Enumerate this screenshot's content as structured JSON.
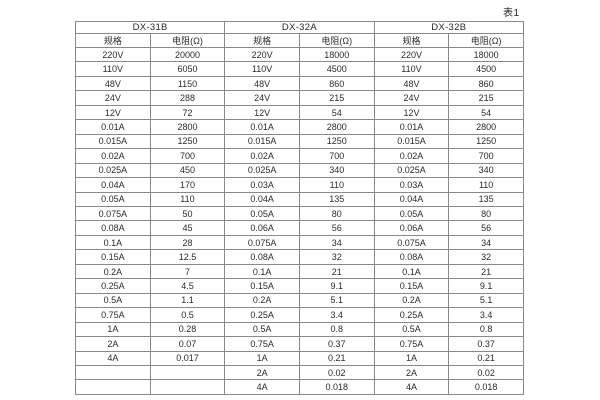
{
  "page": {
    "caption": "表1"
  },
  "colors": {
    "background": "#ffffff",
    "border": "#898989",
    "text": "#2b2b2b"
  },
  "table": {
    "groups": [
      {
        "name": "DX-31B",
        "spec_header": "规格",
        "resistance_header": "电阻(Ω)"
      },
      {
        "name": "DX-32A",
        "spec_header": "规格",
        "resistance_header": "电阻(Ω)"
      },
      {
        "name": "DX-32B",
        "spec_header": "规格",
        "resistance_header": "电阻(Ω)"
      }
    ],
    "rows": [
      [
        "220V",
        "20000",
        "220V",
        "18000",
        "220V",
        "18000"
      ],
      [
        "110V",
        "6050",
        "110V",
        "4500",
        "110V",
        "4500"
      ],
      [
        "48V",
        "1150",
        "48V",
        "860",
        "48V",
        "860"
      ],
      [
        "24V",
        "288",
        "24V",
        "215",
        "24V",
        "215"
      ],
      [
        "12V",
        "72",
        "12V",
        "54",
        "12V",
        "54"
      ],
      [
        "0.01A",
        "2800",
        "0.01A",
        "2800",
        "0.01A",
        "2800"
      ],
      [
        "0.015A",
        "1250",
        "0.015A",
        "1250",
        "0.015A",
        "1250"
      ],
      [
        "0.02A",
        "700",
        "0.02A",
        "700",
        "0.02A",
        "700"
      ],
      [
        "0.025A",
        "450",
        "0.025A",
        "340",
        "0.025A",
        "340"
      ],
      [
        "0.04A",
        "170",
        "0.03A",
        "110",
        "0.03A",
        "110"
      ],
      [
        "0.05A",
        "110",
        "0.04A",
        "135",
        "0.04A",
        "135"
      ],
      [
        "0.075A",
        "50",
        "0.05A",
        "80",
        "0.05A",
        "80"
      ],
      [
        "0.08A",
        "45",
        "0.06A",
        "56",
        "0.06A",
        "56"
      ],
      [
        "0.1A",
        "28",
        "0.075A",
        "34",
        "0.075A",
        "34"
      ],
      [
        "0.15A",
        "12.5",
        "0.08A",
        "32",
        "0.08A",
        "32"
      ],
      [
        "0.2A",
        "7",
        "0.1A",
        "21",
        "0.1A",
        "21"
      ],
      [
        "0.25A",
        "4.5",
        "0.15A",
        "9.1",
        "0.15A",
        "9.1"
      ],
      [
        "0.5A",
        "1.1",
        "0.2A",
        "5.1",
        "0.2A",
        "5.1"
      ],
      [
        "0.75A",
        "0.5",
        "0.25A",
        "3.4",
        "0.25A",
        "3.4"
      ],
      [
        "1A",
        "0.28",
        "0.5A",
        "0.8",
        "0.5A",
        "0.8"
      ],
      [
        "2A",
        "0.07",
        "0.75A",
        "0.37",
        "0.75A",
        "0.37"
      ],
      [
        "4A",
        "0.017",
        "1A",
        "0.21",
        "1A",
        "0.21"
      ],
      [
        "",
        "",
        "2A",
        "0.02",
        "2A",
        "0.02"
      ],
      [
        "",
        "",
        "4A",
        "0.018",
        "4A",
        "0.018"
      ]
    ]
  }
}
